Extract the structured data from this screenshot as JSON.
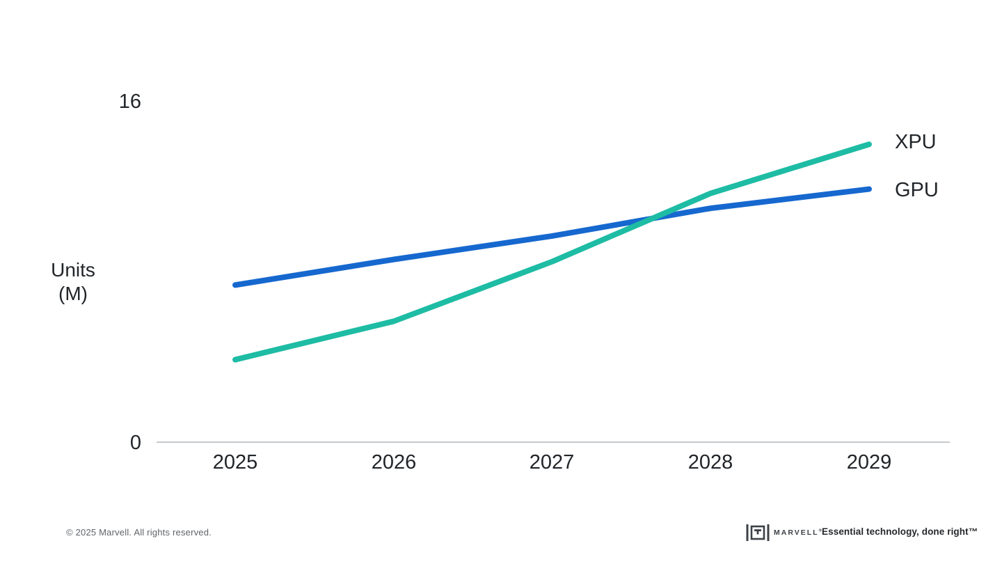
{
  "chart_data": {
    "type": "line",
    "title": "",
    "xlabel": "",
    "ylabel_lines": [
      "Units",
      "(M)"
    ],
    "x": [
      2025,
      2026,
      2027,
      2028,
      2029
    ],
    "xtick_labels": [
      "2025",
      "2026",
      "2027",
      "2028",
      "2029"
    ],
    "ytick_labels": [
      "0",
      "16"
    ],
    "ylim": [
      0,
      16
    ],
    "grid": false,
    "legend_position": "line-end-right",
    "series": [
      {
        "name": "XPU",
        "color": "#1ebca4",
        "values": [
          3.9,
          5.7,
          8.5,
          11.7,
          14.0
        ]
      },
      {
        "name": "GPU",
        "color": "#1668cf",
        "values": [
          7.4,
          8.6,
          9.7,
          11.0,
          11.9
        ]
      }
    ],
    "axis_color": "#c5c8ca",
    "label_color": "#212529"
  },
  "footer": {
    "copyright": "© 2025 Marvell. All rights reserved.",
    "brand": "MARVELL",
    "brand_mark": "®",
    "tagline": "Essential technology, done right™"
  }
}
